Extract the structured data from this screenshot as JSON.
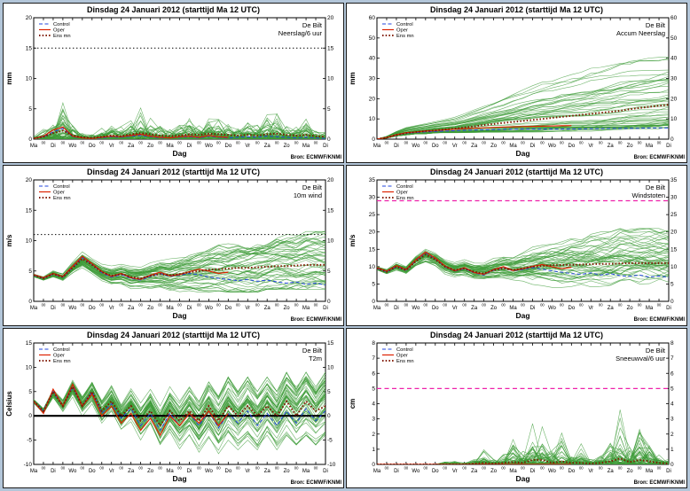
{
  "shared": {
    "title": "Dinsdag  24 Januari  2012  (starttijd Ma 12 UTC)",
    "station": "De Bilt",
    "legend": [
      "Control",
      "Oper",
      "Ens mn"
    ],
    "source": "Bron: ECMWF/KNMI",
    "xlabel": "Dag",
    "x_day_labels": [
      "Ma",
      "Di",
      "Wo",
      "Do",
      "Vr",
      "Za",
      "Zo",
      "Ma",
      "Di",
      "Wo",
      "Do",
      "Vr",
      "Za",
      "Zo",
      "Ma",
      "Di"
    ],
    "x_minor_label": "00",
    "colors": {
      "control": "#2244dd",
      "oper": "#dd2200",
      "ens_mean": "#801800",
      "members": "#3c9b37",
      "source_text": "#2222cc",
      "magenta": "#ee22aa"
    }
  },
  "chart_data": [
    {
      "type": "line",
      "param": "Neerslag/6 uur",
      "ylabel": "mm",
      "ymin": 0,
      "ymax": 20,
      "ystep": 5,
      "mode": "floor",
      "skew": 2.2,
      "n_members": 50,
      "hlines": [
        {
          "y": 15,
          "style": "dotted",
          "color": "#000000",
          "width": 1
        }
      ],
      "env_min": 0,
      "env_max": [
        0.5,
        2,
        4,
        7,
        3,
        1.5,
        1,
        2,
        3,
        2.5,
        4,
        5.5,
        4,
        3,
        2,
        3,
        4,
        3,
        5,
        4,
        3,
        2.5,
        3.5,
        3,
        4.5,
        5,
        3,
        2.5,
        4,
        2,
        1.5
      ],
      "ens_mean": [
        0.1,
        0.4,
        1,
        1.4,
        0.6,
        0.3,
        0.2,
        0.4,
        0.6,
        0.5,
        0.8,
        1,
        0.8,
        0.6,
        0.5,
        0.6,
        0.8,
        0.7,
        0.9,
        0.8,
        0.7,
        0.6,
        0.7,
        0.6,
        0.8,
        0.9,
        0.7,
        0.6,
        0.7,
        0.5,
        0.4
      ],
      "control": [
        0.1,
        0.4,
        1.2,
        1.8,
        0.4,
        0.2,
        0.1,
        0.2,
        0.4,
        0.3,
        0.5,
        0.6,
        0.4,
        0.2,
        0.2,
        0.3,
        0.4,
        0.2,
        0.5,
        0.3,
        0.2,
        0.3,
        0.4,
        0.3,
        0.5,
        0.4,
        0.3,
        0.2,
        0.3,
        0.2,
        0.1
      ],
      "oper": [
        0.1,
        0.5,
        1.5,
        2,
        0.5,
        0.2,
        0.1,
        0.3,
        0.5,
        0.4,
        0.6,
        0.8,
        0.5,
        0.3,
        0.2,
        0.4,
        0.5,
        0.3,
        0.6,
        0.4,
        0.3
      ]
    },
    {
      "type": "line",
      "param": "Accum Neerslag",
      "ylabel": "mm",
      "ymin": 0,
      "ymax": 60,
      "ystep": 10,
      "mode": "cum",
      "n_members": 50,
      "hlines": [],
      "env_min": [
        0,
        0.5,
        1.5,
        2,
        2.5,
        2.5,
        3,
        3,
        3,
        3,
        3,
        3,
        3,
        3,
        3,
        3,
        3,
        3,
        3,
        3,
        3,
        3,
        3,
        3.5,
        3.5,
        3.5,
        4,
        4,
        4,
        4,
        4
      ],
      "env_max": [
        0,
        1.5,
        4,
        6,
        7,
        8,
        9,
        10,
        11,
        13,
        15,
        17,
        19,
        21,
        23,
        25,
        27,
        29,
        30,
        32,
        33,
        34,
        36,
        37,
        38,
        40,
        41,
        42,
        43,
        44,
        45
      ],
      "ens_mean": [
        0,
        0.8,
        2,
        3,
        3.5,
        4,
        4.3,
        4.8,
        5.2,
        5.8,
        6.3,
        7,
        7.5,
        8,
        8.5,
        9,
        9.5,
        10,
        10.5,
        11,
        11.5,
        12,
        12.5,
        13,
        13.5,
        14,
        14.8,
        15.4,
        16,
        16.5,
        17
      ],
      "control": [
        0,
        0.8,
        2,
        3,
        3.3,
        3.6,
        3.8,
        4,
        4.2,
        4.4,
        4.5,
        4.6,
        4.7,
        4.8,
        4.9,
        5,
        5,
        5,
        5,
        5,
        5.1,
        5.1,
        5.2,
        5.2,
        5.3,
        5.3,
        5.4,
        5.4,
        5.5,
        5.5,
        5.5
      ],
      "oper": [
        0,
        0.8,
        2.2,
        3.2,
        3.6,
        4,
        4.3,
        4.6,
        4.9,
        5.2,
        5.4,
        5.6,
        5.8,
        6,
        6.1,
        6.2,
        6.3,
        6.4,
        6.5,
        6.6,
        6.7
      ]
    },
    {
      "type": "line",
      "param": "10m wind",
      "ylabel": "m/s",
      "ymin": 0,
      "ymax": 20,
      "ystep": 5,
      "mode": "band",
      "n_members": 50,
      "hlines": [
        {
          "y": 11,
          "style": "dotted",
          "color": "#000000",
          "width": 1
        }
      ],
      "env_min": [
        3.5,
        3,
        3.5,
        3,
        4,
        5,
        4,
        3,
        2.5,
        2.5,
        2,
        2,
        2,
        2,
        1.5,
        1.5,
        1.5,
        1.5,
        1.5,
        1.5,
        1.5,
        1.5,
        1.5,
        1.5,
        2,
        2,
        2,
        2,
        2,
        2,
        2
      ],
      "env_max": [
        5,
        4.5,
        5.5,
        5,
        7,
        8.5,
        7.5,
        6.5,
        6,
        6.5,
        6,
        6,
        6.5,
        7,
        7,
        7.5,
        8,
        8.5,
        9,
        9.5,
        9.5,
        10,
        10,
        10.5,
        10.5,
        11,
        11,
        11,
        11.5,
        11.5,
        11.5
      ],
      "ens_mean": [
        4.3,
        3.8,
        4.5,
        4,
        5.5,
        7,
        6,
        4.8,
        4.2,
        4.5,
        4,
        3.8,
        4.2,
        4.5,
        4.3,
        4.5,
        4.8,
        5,
        5.2,
        5.3,
        5.4,
        5.5,
        5.5,
        5.6,
        5.7,
        5.8,
        5.8,
        5.9,
        6,
        6,
        6
      ],
      "control": [
        4.3,
        3.8,
        4.5,
        4,
        5.6,
        7.2,
        6.1,
        4.7,
        4,
        4.4,
        3.8,
        3.5,
        4.1,
        4.6,
        4.1,
        4.3,
        4.6,
        4.4,
        4,
        3.8,
        3.6,
        3.4,
        3.6,
        3.3,
        3.5,
        3.2,
        3,
        3.2,
        2.8,
        3,
        2.7
      ],
      "oper": [
        4.4,
        3.9,
        4.6,
        4.1,
        5.8,
        7.4,
        6.2,
        4.9,
        4.1,
        4.6,
        3.9,
        3.6,
        4.3,
        4.8,
        4.2,
        4.4,
        4.9,
        5.3,
        5,
        4.6,
        4.8
      ]
    },
    {
      "type": "line",
      "param": "Windstoten",
      "ylabel": "m/s",
      "ymin": 0,
      "ymax": 35,
      "ystep": 5,
      "mode": "band",
      "n_members": 50,
      "hlines": [
        {
          "y": 29,
          "style": "dashed",
          "color": "#ee22aa",
          "width": 1.2
        }
      ],
      "env_min": [
        8,
        7,
        8,
        7,
        9,
        10,
        9,
        7,
        6,
        6,
        5,
        5,
        5,
        5,
        4.5,
        4.5,
        4,
        4,
        4,
        4,
        4,
        4,
        4,
        4,
        4.5,
        4.5,
        5,
        5,
        5,
        5,
        5
      ],
      "env_max": [
        11,
        10,
        12,
        11,
        14,
        16,
        15,
        13,
        12,
        13,
        12,
        12,
        13,
        14,
        14,
        15,
        16,
        17,
        18,
        18,
        19,
        19,
        20,
        20,
        20,
        21,
        21,
        21,
        21,
        21,
        21
      ],
      "ens_mean": [
        9.5,
        8.5,
        10,
        9,
        11.5,
        13.5,
        12,
        10,
        9,
        9.5,
        8.5,
        8,
        9,
        9.5,
        9,
        9.5,
        10,
        10.2,
        10.4,
        10.5,
        10.5,
        10.6,
        10.7,
        10.8,
        10.8,
        10.9,
        11,
        11,
        11,
        11,
        11
      ],
      "control": [
        9.5,
        8.5,
        10,
        9,
        11.8,
        14,
        12.3,
        10,
        8.7,
        9.4,
        8.2,
        7.6,
        9,
        9.8,
        8.8,
        9.2,
        9.7,
        9.3,
        8.8,
        8.4,
        8,
        7.8,
        8.2,
        7.6,
        8,
        7.4,
        7.2,
        7.6,
        7,
        7.3,
        6.9
      ],
      "oper": [
        9.7,
        8.7,
        10.3,
        9.2,
        12,
        14.2,
        12.5,
        10.2,
        8.8,
        9.7,
        8.3,
        7.8,
        9.2,
        10,
        8.9,
        9.4,
        10.1,
        10.6,
        10,
        9.4,
        9.8
      ]
    },
    {
      "type": "line",
      "param": "T2m",
      "ylabel": "Celsius",
      "ymin": -10,
      "ymax": 15,
      "ystep": 5,
      "mode": "band",
      "n_members": 50,
      "hlines": [
        {
          "y": 0,
          "style": "solid",
          "color": "#000000",
          "width": 2.2
        }
      ],
      "env_min": [
        2,
        0,
        3,
        0,
        3,
        -1,
        1,
        -3,
        -1,
        -4,
        -2,
        -6,
        -3,
        -7,
        -4,
        -7,
        -5,
        -8,
        -5,
        -8,
        -5,
        -7,
        -5,
        -7,
        -4,
        -7,
        -4,
        -6,
        -4,
        -6,
        -4
      ],
      "env_max": [
        4,
        2,
        6,
        4,
        8,
        5,
        8,
        4,
        7,
        3,
        6,
        3,
        6,
        2,
        6,
        3,
        6,
        3,
        7,
        4,
        8,
        5,
        8,
        5,
        8,
        5,
        9,
        6,
        9,
        6,
        9
      ],
      "ens_mean": [
        3,
        1,
        5,
        2,
        6,
        2,
        5,
        1,
        3,
        0,
        2,
        -1,
        1,
        -2,
        1,
        -1,
        1,
        -1,
        2,
        -1,
        2,
        0,
        2,
        0,
        2,
        0,
        3,
        0,
        3,
        1,
        2
      ],
      "control": [
        3,
        1,
        5,
        2,
        6,
        2,
        5,
        0.5,
        2.5,
        -0.5,
        1.5,
        -2,
        0.5,
        -3,
        0.5,
        -2,
        0.5,
        -2,
        1,
        -2.5,
        0.5,
        -1.5,
        1,
        -2,
        0.5,
        -2,
        1,
        -1.5,
        1.5,
        -1,
        1
      ],
      "oper": [
        3,
        0.5,
        5.5,
        2,
        6.5,
        2,
        4.5,
        0,
        2,
        -1.5,
        0.5,
        -3,
        -0.5,
        -4,
        0,
        -2,
        0.5,
        -1.5,
        1,
        -2,
        0.5
      ]
    },
    {
      "type": "line",
      "param": "Sneeuwval/6 uur",
      "ylabel": "cm",
      "ymin": 0,
      "ymax": 8,
      "ystep": 1,
      "mode": "floor",
      "skew": 3,
      "n_members": 50,
      "hlines": [
        {
          "y": 5,
          "style": "dashed",
          "color": "#ee22aa",
          "width": 1.2
        }
      ],
      "env_min": 0,
      "env_max": [
        0,
        0,
        0,
        0,
        0,
        0,
        0,
        0.2,
        0.3,
        0.2,
        0.5,
        1.5,
        0.5,
        1,
        2,
        1,
        3.5,
        4,
        1.5,
        2.5,
        1,
        1.5,
        0.5,
        1,
        2,
        6,
        1.5,
        4,
        2,
        1,
        0.5
      ],
      "ens_mean": [
        0,
        0,
        0,
        0,
        0,
        0,
        0,
        0,
        0,
        0,
        0.05,
        0.1,
        0.05,
        0.1,
        0.15,
        0.1,
        0.3,
        0.3,
        0.1,
        0.2,
        0.1,
        0.1,
        0.05,
        0.1,
        0.2,
        0.4,
        0.15,
        0.3,
        0.2,
        0.1,
        0.05
      ],
      "control": 0,
      "oper": 0
    }
  ]
}
